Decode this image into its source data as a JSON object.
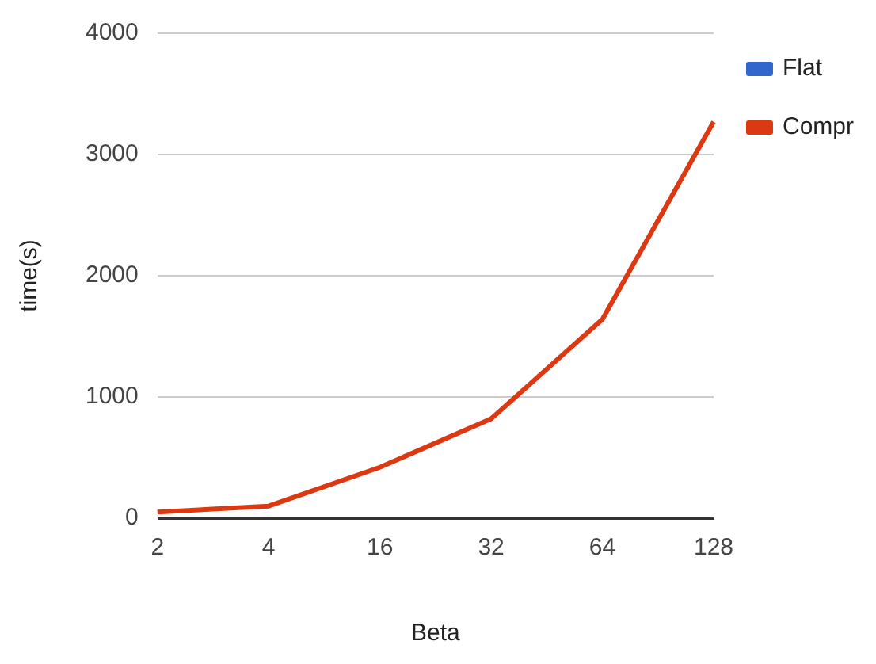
{
  "chart_data": {
    "type": "line",
    "xlabel": "Beta",
    "ylabel": "time(s)",
    "categories": [
      "2",
      "4",
      "16",
      "32",
      "64",
      "128"
    ],
    "series": [
      {
        "name": "Flat",
        "color": "#3366cc",
        "values": [
          null,
          null,
          null,
          null,
          null,
          null
        ]
      },
      {
        "name": "Compr",
        "color": "#dc3912",
        "values": [
          50,
          100,
          420,
          820,
          1640,
          3270
        ]
      }
    ],
    "ylim": [
      0,
      4000
    ],
    "yticks": [
      0,
      1000,
      2000,
      3000,
      4000
    ],
    "grid": "y",
    "legend": "top right",
    "marker": "none",
    "line_style": "solid"
  }
}
